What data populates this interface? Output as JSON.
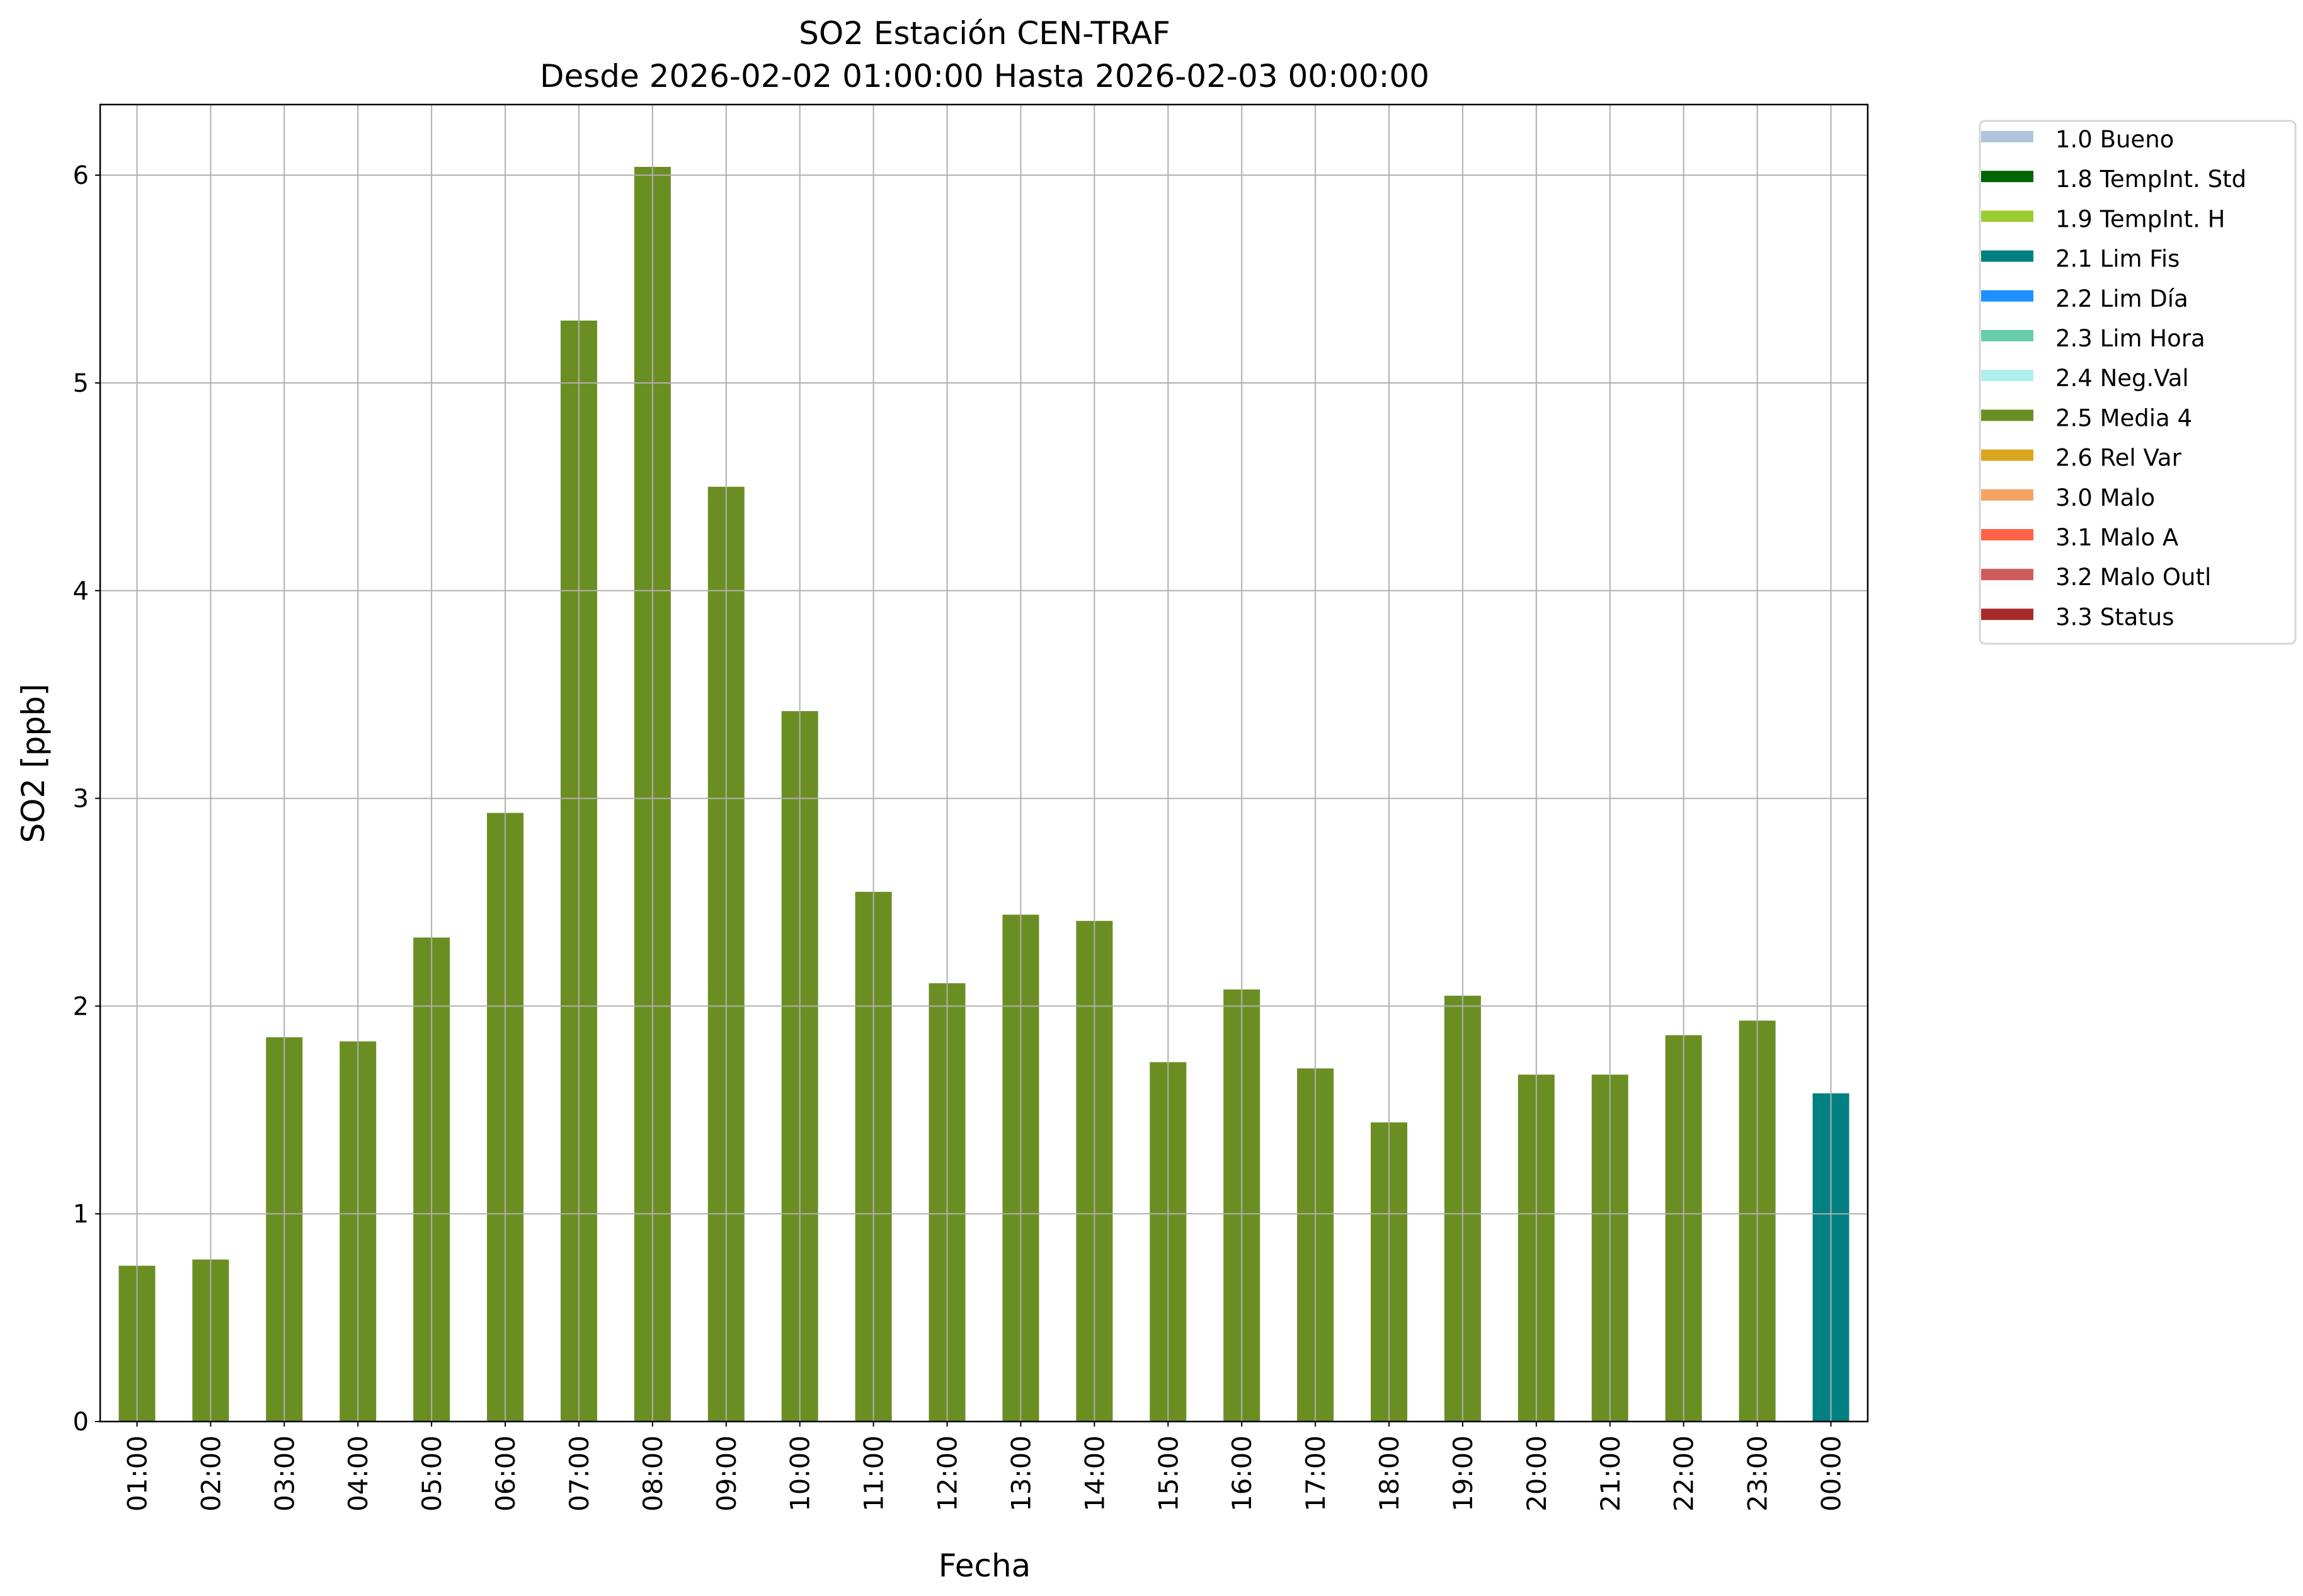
{
  "chart_data": {
    "type": "bar",
    "title": "SO2 Estación CEN-TRAF",
    "subtitle": "Desde 2026-02-02 01:00:00 Hasta 2026-02-03 00:00:00",
    "xlabel": "Fecha",
    "ylabel": "SO2 [ppb]",
    "ylim": [
      0,
      6.34
    ],
    "yticks": [
      0,
      1,
      2,
      3,
      4,
      5,
      6
    ],
    "grid": true,
    "legend_placement": "outside-top-right",
    "categories": [
      "01:00",
      "02:00",
      "03:00",
      "04:00",
      "05:00",
      "06:00",
      "07:00",
      "08:00",
      "09:00",
      "10:00",
      "11:00",
      "12:00",
      "13:00",
      "14:00",
      "15:00",
      "16:00",
      "17:00",
      "18:00",
      "19:00",
      "20:00",
      "21:00",
      "22:00",
      "23:00",
      "00:00"
    ],
    "values": [
      0.75,
      0.78,
      1.85,
      1.83,
      2.33,
      2.93,
      5.3,
      6.04,
      4.5,
      3.42,
      2.55,
      2.11,
      2.44,
      2.41,
      1.73,
      2.08,
      1.7,
      1.44,
      2.05,
      1.67,
      1.67,
      1.86,
      1.93,
      1.58
    ],
    "flags": [
      "2.5",
      "2.5",
      "2.5",
      "2.5",
      "2.5",
      "2.5",
      "2.5",
      "2.5",
      "2.5",
      "2.5",
      "2.5",
      "2.5",
      "2.5",
      "2.5",
      "2.5",
      "2.5",
      "2.5",
      "2.5",
      "2.5",
      "2.5",
      "2.5",
      "2.5",
      "2.5",
      "2.1"
    ],
    "legend": [
      {
        "code": "1.0",
        "label": "1.0 Bueno",
        "color": "#b0c4de"
      },
      {
        "code": "1.8",
        "label": "1.8 TempInt. Std",
        "color": "#006400"
      },
      {
        "code": "1.9",
        "label": "1.9 TempInt. H",
        "color": "#9acd32"
      },
      {
        "code": "2.1",
        "label": "2.1 Lim Fis",
        "color": "#008080"
      },
      {
        "code": "2.2",
        "label": "2.2 Lim Día",
        "color": "#1e90ff"
      },
      {
        "code": "2.3",
        "label": "2.3 Lim Hora",
        "color": "#66cdaa"
      },
      {
        "code": "2.4",
        "label": "2.4 Neg.Val",
        "color": "#afeeee"
      },
      {
        "code": "2.5",
        "label": "2.5 Media 4",
        "color": "#6b8e23"
      },
      {
        "code": "2.6",
        "label": "2.6 Rel Var",
        "color": "#daa520"
      },
      {
        "code": "3.0",
        "label": "3.0 Malo",
        "color": "#f4a460"
      },
      {
        "code": "3.1",
        "label": "3.1 Malo A",
        "color": "#ff6347"
      },
      {
        "code": "3.2",
        "label": "3.2 Malo Outl",
        "color": "#cd5c5c"
      },
      {
        "code": "3.3",
        "label": "3.3 Status",
        "color": "#a52a2a"
      }
    ]
  }
}
